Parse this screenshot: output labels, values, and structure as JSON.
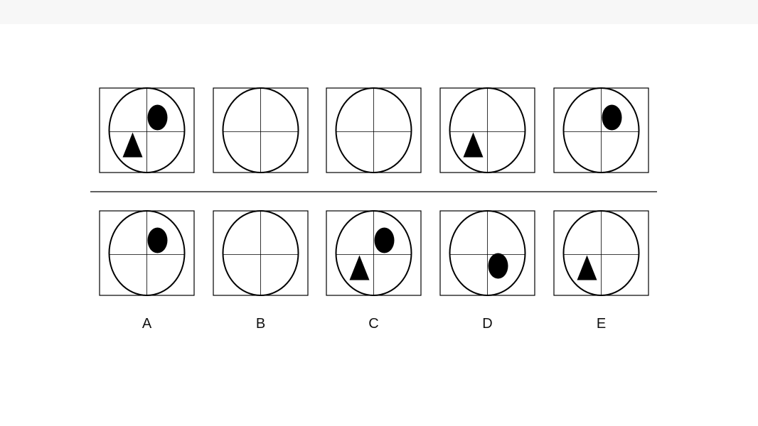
{
  "colors": {
    "background": "#ffffff",
    "top_bar": "#f7f7f7",
    "ink": "#000000",
    "label": "#111111"
  },
  "question_row": {
    "panels": [
      {
        "shapes": [
          {
            "type": "ellipse-filled",
            "quadrant": "top-right"
          },
          {
            "type": "triangle-filled",
            "quadrant": "bottom-left"
          }
        ]
      },
      {
        "shapes": []
      },
      {
        "shapes": []
      },
      {
        "shapes": [
          {
            "type": "triangle-filled",
            "quadrant": "bottom-left"
          }
        ]
      },
      {
        "shapes": [
          {
            "type": "ellipse-filled",
            "quadrant": "top-right"
          }
        ]
      }
    ]
  },
  "answer_row": {
    "options": [
      {
        "label": "A",
        "shapes": [
          {
            "type": "ellipse-filled",
            "quadrant": "top-right"
          }
        ]
      },
      {
        "label": "B",
        "shapes": []
      },
      {
        "label": "C",
        "shapes": [
          {
            "type": "ellipse-filled",
            "quadrant": "top-right"
          },
          {
            "type": "triangle-filled",
            "quadrant": "bottom-left"
          }
        ]
      },
      {
        "label": "D",
        "shapes": [
          {
            "type": "ellipse-filled",
            "quadrant": "bottom-right"
          }
        ]
      },
      {
        "label": "E",
        "shapes": [
          {
            "type": "triangle-filled",
            "quadrant": "bottom-left"
          }
        ]
      }
    ]
  }
}
